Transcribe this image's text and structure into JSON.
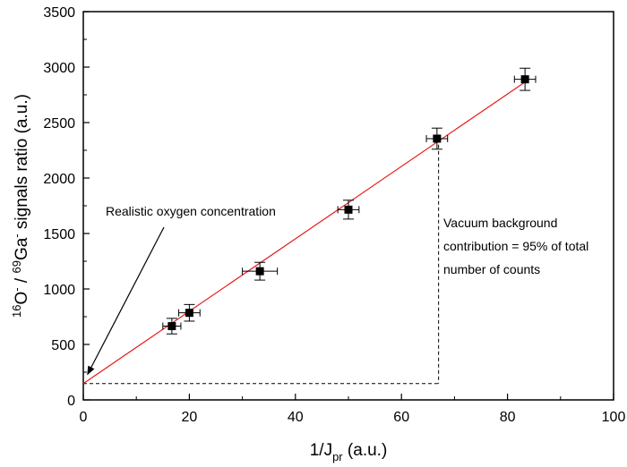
{
  "chart_data": {
    "type": "scatter",
    "xlabel": {
      "base": "1/J",
      "sub": "pr",
      "suffix": " (a.u.)"
    },
    "ylabel": {
      "sup1": "16",
      "part1": "O",
      "sup2": "-",
      "part2": " / ",
      "sup3": "69",
      "part3": "Ga",
      "sup4": "-",
      "part4": " signals ratio (a.u.)"
    },
    "xlim": [
      0,
      100
    ],
    "ylim": [
      0,
      3500
    ],
    "x_ticks": [
      0,
      20,
      40,
      60,
      80,
      100
    ],
    "y_ticks": [
      0,
      500,
      1000,
      1500,
      2000,
      2500,
      3000,
      3500
    ],
    "series": [
      {
        "name": "data",
        "marker": "square",
        "x": [
          16.7,
          20,
          33.3,
          50,
          66.7,
          83.3
        ],
        "y": [
          665,
          785,
          1160,
          1715,
          2355,
          2890
        ],
        "xerr": [
          1.7,
          2,
          3.3,
          2,
          2,
          2
        ],
        "yerr": [
          70,
          75,
          80,
          85,
          95,
          100
        ]
      }
    ],
    "fit_line": {
      "color": "#e8191a",
      "x": [
        0,
        83.3
      ],
      "y": [
        147,
        2865
      ]
    },
    "guide_lines": {
      "x": 67,
      "y": 147
    },
    "annotations": [
      {
        "text": "Realistic oxygen concentration",
        "arrow_to_x": 0.8,
        "arrow_to_y": 230
      },
      {
        "lines": [
          "Vacuum background",
          "contribution = 95% of total",
          "number of counts"
        ]
      }
    ]
  }
}
